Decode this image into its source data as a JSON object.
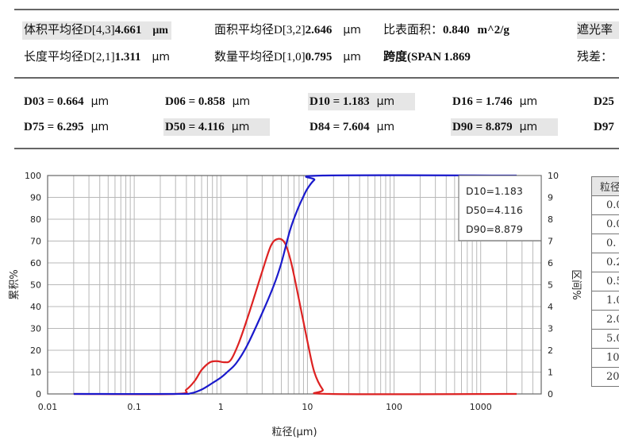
{
  "summary": {
    "row1": [
      {
        "label": "体积平均径D[4,3]",
        "value": "4.661",
        "unit": "μm",
        "highlight": true
      },
      {
        "label": "面积平均径D[3,2]",
        "value": "2.646",
        "unit": "μm",
        "highlight": false
      },
      {
        "label": "比表面积：",
        "value": "0.840",
        "unit": "m^2/g",
        "highlight": false
      },
      {
        "label": "遮光率",
        "value": "",
        "unit": "",
        "highlight": true
      }
    ],
    "row2": [
      {
        "label": "长度平均径D[2,1]",
        "value": "1.311",
        "unit": "μm"
      },
      {
        "label": "数量平均径D[1,0]",
        "value": "0.795",
        "unit": "μm"
      },
      {
        "label": "跨度(SPAN",
        "value": "1.869",
        "unit": ""
      },
      {
        "label": "残差：",
        "value": "",
        "unit": ""
      }
    ]
  },
  "percentiles": {
    "row1": [
      {
        "text": "D03 = 0.664",
        "unit": "μm",
        "highlight": false
      },
      {
        "text": "D06 = 0.858",
        "unit": "μm",
        "highlight": false
      },
      {
        "text": "D10 = 1.183",
        "unit": "μm",
        "highlight": true
      },
      {
        "text": "D16 = 1.746",
        "unit": "μm",
        "highlight": false
      },
      {
        "text": "D25",
        "unit": "",
        "highlight": false
      }
    ],
    "row2": [
      {
        "text": "D75 = 6.295",
        "unit": "μm",
        "highlight": false
      },
      {
        "text": "D50 = 4.116",
        "unit": "μm",
        "highlight": true
      },
      {
        "text": "D84 = 7.604",
        "unit": "μm",
        "highlight": false
      },
      {
        "text": "D90 = 8.879",
        "unit": "μm",
        "highlight": true
      },
      {
        "text": "D97",
        "unit": "",
        "highlight": false
      }
    ]
  },
  "side_table": {
    "header": "粒径",
    "rows": [
      "0.0",
      "0.0",
      "0.",
      "0.2",
      "0.5",
      "1.0",
      "2.0",
      "5.0",
      "10",
      "20"
    ]
  },
  "chart_data": {
    "type": "line",
    "xlabel": "粒径(μm)",
    "ylabel": "累积%",
    "y2label": "区间%",
    "xscale": "log",
    "xlim": [
      0.01,
      5000
    ],
    "ylim": [
      0,
      100
    ],
    "y2lim": [
      0,
      10
    ],
    "xticks": [
      "0.01",
      "0.1",
      "1",
      "10",
      "100",
      "1000"
    ],
    "yticks": [
      "0",
      "10",
      "20",
      "30",
      "40",
      "50",
      "60",
      "70",
      "80",
      "90",
      "100"
    ],
    "y2ticks": [
      "0",
      "1",
      "2",
      "3",
      "4",
      "5",
      "6",
      "7",
      "8",
      "9",
      "10"
    ],
    "grid": true,
    "annotation": [
      "D10=1.183",
      "D50=4.116",
      "D90=8.879"
    ],
    "annotation_placement": "top-right",
    "colors": {
      "cumulative": "#1a1acc",
      "interval": "#dd2222"
    },
    "series": [
      {
        "axis": "left",
        "color": "#1a1acc",
        "points": [
          [
            0.02,
            0
          ],
          [
            0.3,
            0
          ],
          [
            0.45,
            0.3
          ],
          [
            0.6,
            2
          ],
          [
            0.8,
            5
          ],
          [
            1,
            7.5
          ],
          [
            1.183,
            10
          ],
          [
            1.5,
            14
          ],
          [
            2,
            22
          ],
          [
            3,
            37
          ],
          [
            4.116,
            50
          ],
          [
            5,
            60
          ],
          [
            6.295,
            75
          ],
          [
            7.604,
            84
          ],
          [
            8.879,
            90
          ],
          [
            10,
            94
          ],
          [
            12,
            98
          ],
          [
            15,
            100
          ],
          [
            2600,
            100
          ]
        ]
      },
      {
        "axis": "right",
        "color": "#dd2222",
        "points": [
          [
            0.02,
            0
          ],
          [
            0.3,
            0
          ],
          [
            0.4,
            0.2
          ],
          [
            0.5,
            0.6
          ],
          [
            0.6,
            1.1
          ],
          [
            0.75,
            1.45
          ],
          [
            0.9,
            1.5
          ],
          [
            1.1,
            1.45
          ],
          [
            1.3,
            1.55
          ],
          [
            1.6,
            2.3
          ],
          [
            2,
            3.4
          ],
          [
            2.5,
            4.6
          ],
          [
            3,
            5.6
          ],
          [
            3.8,
            6.8
          ],
          [
            4.6,
            7.1
          ],
          [
            5.5,
            6.9
          ],
          [
            6.5,
            6
          ],
          [
            8,
            4.3
          ],
          [
            10,
            2.4
          ],
          [
            12,
            1.0
          ],
          [
            15,
            0.2
          ],
          [
            18,
            0
          ],
          [
            2600,
            0
          ]
        ]
      }
    ]
  }
}
